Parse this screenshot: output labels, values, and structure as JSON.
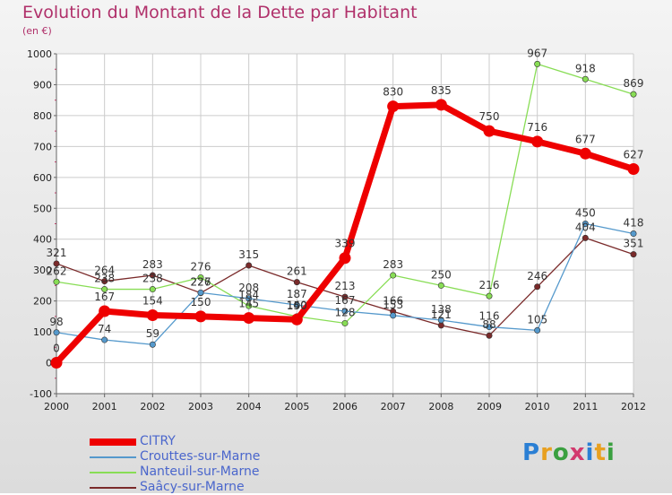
{
  "title": "Evolution du Montant de la Dette par Habitant",
  "subtitle": "(en €)",
  "logo": {
    "text": "Proxiti",
    "letter_colors": [
      "#2a7fd4",
      "#e8a020",
      "#3aa040",
      "#d23a6e",
      "#2a7fd4",
      "#e8a020",
      "#3aa040"
    ]
  },
  "chart_data": {
    "type": "line",
    "x": [
      "2000",
      "2001",
      "2002",
      "2003",
      "2004",
      "2005",
      "2006",
      "2007",
      "2008",
      "2009",
      "2010",
      "2011",
      "2012"
    ],
    "ylim": [
      -100,
      1000
    ],
    "yticks": [
      -100,
      0,
      100,
      200,
      300,
      400,
      500,
      600,
      700,
      800,
      900,
      1000
    ],
    "grid": true,
    "legend": "bottom-left",
    "series": [
      {
        "name": "Saâcy-sur-Marne",
        "color": "#7a2a2a",
        "weight": "thin",
        "values": [
          321,
          264,
          283,
          226,
          315,
          261,
          213,
          166,
          121,
          88,
          246,
          404,
          351
        ],
        "labels": [
          "321",
          "264",
          "283",
          "226",
          "315",
          "261",
          "213",
          "166",
          "121",
          "88",
          "246",
          "404",
          "351"
        ]
      },
      {
        "name": "Nanteuil-sur-Marne",
        "color": "#88dd55",
        "weight": "thin",
        "values": [
          262,
          238,
          238,
          276,
          184,
          150,
          128,
          283,
          250,
          216,
          967,
          918,
          869
        ],
        "labels": [
          "262",
          "238",
          "238",
          "276",
          "184",
          "150",
          "128",
          "283",
          "250",
          "216",
          "967",
          "918",
          "869"
        ]
      },
      {
        "name": "Crouttes-sur-Marne",
        "color": "#5599cc",
        "weight": "thin",
        "values": [
          98,
          74,
          59,
          227,
          208,
          187,
          167,
          153,
          138,
          116,
          105,
          450,
          418
        ],
        "labels": [
          "98",
          "74",
          "59",
          "227",
          "208",
          "187",
          "167",
          "153",
          "138",
          "116",
          "105",
          "450",
          "418"
        ]
      },
      {
        "name": "CITRY",
        "color": "#ee0000",
        "weight": "thick",
        "values": [
          0,
          167,
          154,
          150,
          145,
          140,
          339,
          830,
          835,
          750,
          716,
          677,
          627
        ],
        "labels": [
          "0",
          "167",
          "154",
          "150",
          "145",
          "140",
          "339",
          "830",
          "835",
          "750",
          "716",
          "677",
          "627"
        ]
      }
    ],
    "legend_order": [
      "CITRY",
      "Crouttes-sur-Marne",
      "Nanteuil-sur-Marne",
      "Saâcy-sur-Marne"
    ],
    "legend_colors": [
      "#ee0000",
      "#5599cc",
      "#88dd55",
      "#7a2a2a"
    ]
  }
}
